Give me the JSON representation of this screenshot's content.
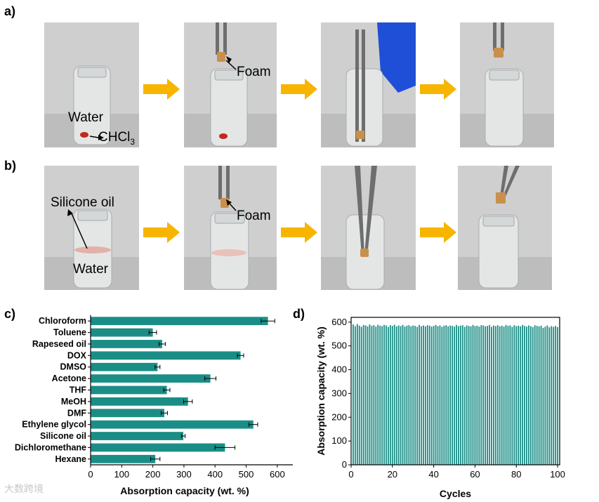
{
  "panels": {
    "a": {
      "label": "a)",
      "annotations": {
        "water": "Water",
        "chcl3_main": "CHCl",
        "chcl3_sub": "3",
        "foam": "Foam"
      }
    },
    "b": {
      "label": "b)",
      "annotations": {
        "silicone_oil": "Silicone oil",
        "water": "Water",
        "foam": "Foam"
      }
    },
    "c": {
      "label": "c)"
    },
    "d": {
      "label": "d)"
    }
  },
  "colors": {
    "bar": "#1a8e86",
    "arrow": "#f7b500",
    "photo_bg": "#c9c9c9",
    "drop": "#c2281e"
  },
  "watermark": "大数跨境",
  "chart_data": [
    {
      "id": "c",
      "type": "bar",
      "orientation": "horizontal",
      "categories": [
        "Chloroform",
        "Toluene",
        "Rapeseed oil",
        "DOX",
        "DMSO",
        "Acetone",
        "THF",
        "MeOH",
        "DMF",
        "Ethylene glycol",
        "Silicone oil",
        "Dichloromethane",
        "Hexane"
      ],
      "values": [
        570,
        200,
        230,
        482,
        215,
        385,
        245,
        313,
        237,
        523,
        298,
        432,
        208
      ],
      "errors": [
        22,
        12,
        10,
        10,
        8,
        18,
        10,
        14,
        10,
        14,
        6,
        32,
        15
      ],
      "xlabel": "Absorption capacity (wt. %)",
      "xlim": [
        0,
        650
      ],
      "xticks": [
        0,
        100,
        200,
        300,
        400,
        500,
        600
      ],
      "error_bars": true
    },
    {
      "id": "d",
      "type": "bar",
      "x": [
        1,
        2,
        3,
        4,
        5,
        6,
        7,
        8,
        9,
        10,
        11,
        12,
        13,
        14,
        15,
        16,
        17,
        18,
        19,
        20,
        21,
        22,
        23,
        24,
        25,
        26,
        27,
        28,
        29,
        30,
        31,
        32,
        33,
        34,
        35,
        36,
        37,
        38,
        39,
        40,
        41,
        42,
        43,
        44,
        45,
        46,
        47,
        48,
        49,
        50,
        51,
        52,
        53,
        54,
        55,
        56,
        57,
        58,
        59,
        60,
        61,
        62,
        63,
        64,
        65,
        66,
        67,
        68,
        69,
        70,
        71,
        72,
        73,
        74,
        75,
        76,
        77,
        78,
        79,
        80,
        81,
        82,
        83,
        84,
        85,
        86,
        87,
        88,
        89,
        90,
        91,
        92,
        93,
        94,
        95,
        96,
        97,
        98,
        99,
        100
      ],
      "values": [
        590,
        583,
        592,
        585,
        580,
        588,
        586,
        582,
        590,
        584,
        587,
        581,
        589,
        585,
        583,
        588,
        586,
        580,
        587,
        584,
        589,
        582,
        586,
        583,
        588,
        581,
        585,
        587,
        582,
        586,
        584,
        580,
        588,
        583,
        586,
        582,
        587,
        585,
        581,
        584,
        588,
        583,
        586,
        580,
        585,
        587,
        582,
        586,
        584,
        581,
        588,
        583,
        585,
        587,
        580,
        586,
        584,
        582,
        588,
        583,
        585,
        581,
        587,
        586,
        582,
        584,
        588,
        580,
        586,
        583,
        587,
        582,
        585,
        581,
        588,
        584,
        586,
        580,
        587,
        583,
        585,
        582,
        588,
        584,
        581,
        586,
        583,
        579,
        587,
        584,
        582,
        585,
        576,
        581,
        586,
        578,
        583,
        580,
        584,
        579
      ],
      "xlabel": "Cycles",
      "ylabel": "Absorption capacity (wt. %)",
      "xlim": [
        0,
        101
      ],
      "ylim": [
        0,
        620
      ],
      "xticks": [
        0,
        20,
        40,
        60,
        80,
        100
      ],
      "yticks": [
        0,
        100,
        200,
        300,
        400,
        500,
        600
      ]
    }
  ]
}
